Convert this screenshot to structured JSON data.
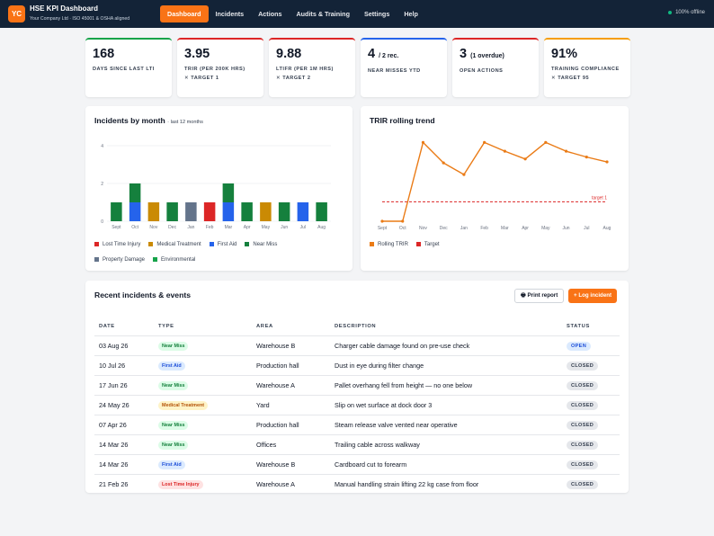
{
  "app": {
    "logo": "YC",
    "title": "HSE KPI Dashboard",
    "subtitle": "Your Company Ltd · ISO 45001 & OSHA aligned",
    "status": "100% offline"
  },
  "nav": [
    {
      "label": "Dashboard",
      "active": true
    },
    {
      "label": "Incidents",
      "active": false
    },
    {
      "label": "Actions",
      "active": false
    },
    {
      "label": "Audits & Training",
      "active": false
    },
    {
      "label": "Settings",
      "active": false
    },
    {
      "label": "Help",
      "active": false
    }
  ],
  "kpis": [
    {
      "value": "168",
      "label": "Days since last LTI",
      "target": "",
      "color": "#16a34a"
    },
    {
      "value": "3.95",
      "label": "TRIR (per 200k hrs)",
      "target": "✕ Target 1",
      "color": "#dc2626"
    },
    {
      "value": "9.88",
      "label": "LTIFR (per 1M hrs)",
      "target": "✕ Target 2",
      "color": "#dc2626"
    },
    {
      "value": "4",
      "value_suffix": "/ 2 rec.",
      "label": "Near misses YTD",
      "target": "",
      "color": "#2563eb"
    },
    {
      "value": "3",
      "value_suffix": "(1 overdue)",
      "label": "Open actions",
      "target": "",
      "color": "#dc2626"
    },
    {
      "value": "91%",
      "label": "Training compliance",
      "target": "✕ Target 95",
      "color": "#f59e0b"
    }
  ],
  "incidents_chart": {
    "title": "Incidents by month",
    "subtitle": "· last 12 months"
  },
  "trend_chart": {
    "title": "TRIR rolling trend"
  },
  "chart_data": [
    {
      "type": "bar",
      "stacked": true,
      "categories": [
        "Sept",
        "Oct",
        "Nov",
        "Dec",
        "Jan",
        "Feb",
        "Mar",
        "Apr",
        "May",
        "Jun",
        "Jul",
        "Aug"
      ],
      "ylim": [
        0,
        4
      ],
      "yticks": [
        0,
        2,
        4
      ],
      "grid": true,
      "series": [
        {
          "name": "Lost Time Injury",
          "color": "#dc2626",
          "values": [
            0,
            0,
            0,
            0,
            0,
            1,
            0,
            0,
            0,
            0,
            0,
            0
          ]
        },
        {
          "name": "Medical Treatment",
          "color": "#ca8a04",
          "values": [
            0,
            0,
            1,
            0,
            0,
            0,
            0,
            0,
            1,
            0,
            0,
            0
          ]
        },
        {
          "name": "First Aid",
          "color": "#2563eb",
          "values": [
            0,
            1,
            0,
            0,
            0,
            0,
            1,
            0,
            0,
            0,
            1,
            0
          ]
        },
        {
          "name": "Near Miss",
          "color": "#15803d",
          "values": [
            1,
            1,
            0,
            1,
            0,
            0,
            1,
            1,
            0,
            1,
            0,
            1
          ]
        },
        {
          "name": "Property Damage",
          "color": "#64748b",
          "values": [
            0,
            0,
            0,
            0,
            1,
            0,
            0,
            0,
            0,
            0,
            0,
            0
          ]
        },
        {
          "name": "Environmental",
          "color": "#16a34a",
          "values": [
            0,
            0,
            0,
            0,
            0,
            0,
            0,
            0,
            0,
            0,
            0,
            0
          ]
        }
      ],
      "legend": "bottom"
    },
    {
      "type": "line",
      "x": [
        "Sept",
        "Oct",
        "Nov",
        "Dec",
        "Jan",
        "Feb",
        "Mar",
        "Apr",
        "May",
        "Jun",
        "Jul",
        "Aug"
      ],
      "ylim": [
        0,
        4.3
      ],
      "series": [
        {
          "name": "Rolling TRIR",
          "color": "#ea7b16",
          "values": [
            0,
            0,
            4.05,
            3.0,
            2.4,
            4.05,
            3.6,
            3.2,
            4.05,
            3.6,
            3.3,
            3.05
          ]
        },
        {
          "name": "Target",
          "color": "#dc2626",
          "dashed": true,
          "values": [
            1,
            1,
            1,
            1,
            1,
            1,
            1,
            1,
            1,
            1,
            1,
            1
          ]
        }
      ],
      "annotations": [
        "target 1"
      ],
      "legend": "bottom"
    }
  ],
  "recent": {
    "title": "Recent incidents & events",
    "print_label": "🖶 Print report",
    "log_label": "+ Log incident",
    "columns": [
      "Date",
      "Type",
      "Area",
      "Description",
      "Status"
    ],
    "rows": [
      {
        "date": "03 Aug 26",
        "type": "Near Miss",
        "area": "Warehouse B",
        "description": "Charger cable damage found on pre-use check",
        "status": "OPEN"
      },
      {
        "date": "10 Jul 26",
        "type": "First Aid",
        "area": "Production hall",
        "description": "Dust in eye during filter change",
        "status": "CLOSED"
      },
      {
        "date": "17 Jun 26",
        "type": "Near Miss",
        "area": "Warehouse A",
        "description": "Pallet overhang fell from height — no one below",
        "status": "CLOSED"
      },
      {
        "date": "24 May 26",
        "type": "Medical Treatment",
        "area": "Yard",
        "description": "Slip on wet surface at dock door 3",
        "status": "CLOSED"
      },
      {
        "date": "07 Apr 26",
        "type": "Near Miss",
        "area": "Production hall",
        "description": "Steam release valve vented near operative",
        "status": "CLOSED"
      },
      {
        "date": "14 Mar 26",
        "type": "Near Miss",
        "area": "Offices",
        "description": "Trailing cable across walkway",
        "status": "CLOSED"
      },
      {
        "date": "14 Mar 26",
        "type": "First Aid",
        "area": "Warehouse B",
        "description": "Cardboard cut to forearm",
        "status": "CLOSED"
      },
      {
        "date": "21 Feb 26",
        "type": "Lost Time Injury",
        "area": "Warehouse A",
        "description": "Manual handling strain lifting 22 kg case from floor",
        "status": "CLOSED"
      }
    ]
  },
  "pill_colors": {
    "Near Miss": {
      "bg": "#dcfce7",
      "fg": "#15803d"
    },
    "First Aid": {
      "bg": "#dbeafe",
      "fg": "#1d4ed8"
    },
    "Medical Treatment": {
      "bg": "#fef3c7",
      "fg": "#b45309"
    },
    "Lost Time Injury": {
      "bg": "#fee2e2",
      "fg": "#dc2626"
    },
    "OPEN": {
      "bg": "#dbeafe",
      "fg": "#1d4ed8"
    },
    "CLOSED": {
      "bg": "#e5e7eb",
      "fg": "#374151"
    }
  }
}
